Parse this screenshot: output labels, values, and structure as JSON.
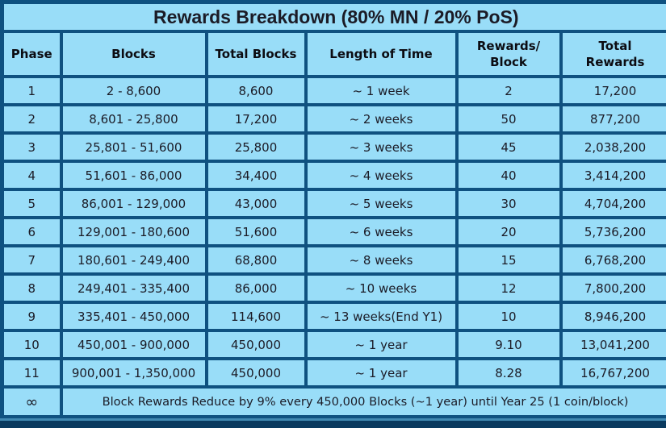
{
  "chart_data": {
    "type": "table",
    "title": "Rewards Breakdown (80% MN / 20% PoS)",
    "columns": [
      "Phase",
      "Blocks",
      "Total Blocks",
      "Length of Time",
      "Rewards/\nBlock",
      "Total\nRewards"
    ],
    "rows": [
      [
        "1",
        "2 - 8,600",
        "8,600",
        "~ 1 week",
        "2",
        "17,200"
      ],
      [
        "2",
        "8,601 - 25,800",
        "17,200",
        "~ 2 weeks",
        "50",
        "877,200"
      ],
      [
        "3",
        "25,801 - 51,600",
        "25,800",
        "~ 3 weeks",
        "45",
        "2,038,200"
      ],
      [
        "4",
        "51,601 - 86,000",
        "34,400",
        "~ 4 weeks",
        "40",
        "3,414,200"
      ],
      [
        "5",
        "86,001 - 129,000",
        "43,000",
        "~ 5 weeks",
        "30",
        "4,704,200"
      ],
      [
        "6",
        "129,001 - 180,600",
        "51,600",
        "~ 6 weeks",
        "20",
        "5,736,200"
      ],
      [
        "7",
        "180,601 - 249,400",
        "68,800",
        "~ 8 weeks",
        "15",
        "6,768,200"
      ],
      [
        "8",
        "249,401 - 335,400",
        "86,000",
        "~ 10 weeks",
        "12",
        "7,800,200"
      ],
      [
        "9",
        "335,401 - 450,000",
        "114,600",
        "~ 13 weeks(End Y1)",
        "10",
        "8,946,200"
      ],
      [
        "10",
        "450,001 - 900,000",
        "450,000",
        "~ 1 year",
        "9.10",
        "13,041,200"
      ],
      [
        "11",
        "900,001 - 1,350,000",
        "450,000",
        "~ 1 year",
        "8.28",
        "16,767,200"
      ]
    ],
    "footer_row": {
      "phase": "∞",
      "note": "Block Rewards Reduce by 9% every 450,000 Blocks (~1 year) until Year 25 (1 coin/block)"
    },
    "layout": "grid table, all cells centered, title row spans all columns"
  },
  "colors": {
    "cell_background": "#99ddf8",
    "grid_border": "#0f5180",
    "text": "#1b1b26",
    "title_text": "#0a0a10",
    "bottom_strip_light": "#4189b2",
    "bottom_strip_dark": "#0a3a5f"
  }
}
